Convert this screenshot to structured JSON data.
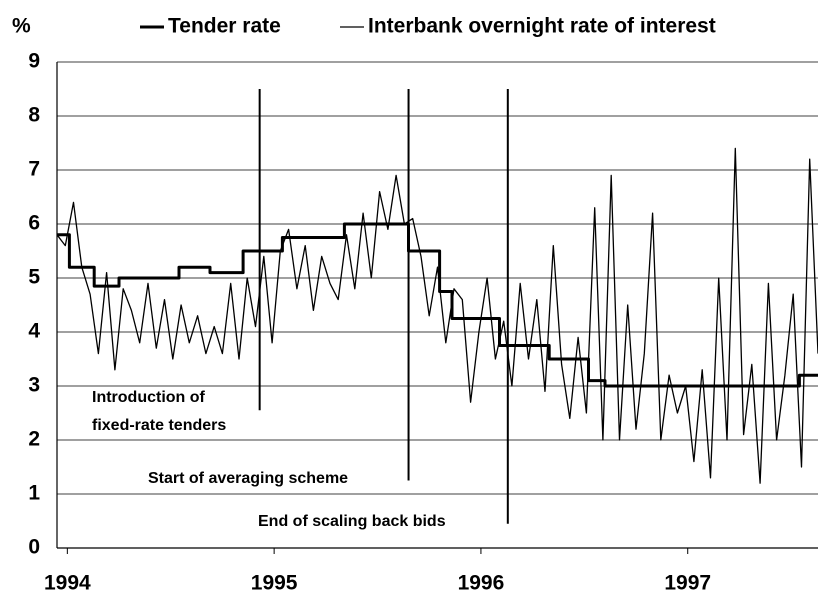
{
  "chart_data": {
    "type": "line",
    "y_label": "%",
    "xlim": [
      1993.95,
      1997.63
    ],
    "ylim": [
      0,
      9
    ],
    "yticks": [
      0,
      1,
      2,
      3,
      4,
      5,
      6,
      7,
      8,
      9
    ],
    "xticks": [
      1994,
      1995,
      1996,
      1997
    ],
    "grid": true,
    "legend": "top",
    "series": [
      {
        "name": "Tender rate",
        "color": "#000000",
        "width": 3,
        "x": [
          1993.95,
          1994.01,
          1994.01,
          1994.13,
          1994.13,
          1994.25,
          1994.25,
          1994.54,
          1994.54,
          1994.69,
          1994.69,
          1994.85,
          1994.85,
          1995.04,
          1995.04,
          1995.34,
          1995.34,
          1995.65,
          1995.65,
          1995.8,
          1995.8,
          1995.86,
          1995.86,
          1996.09,
          1996.09,
          1996.33,
          1996.33,
          1996.52,
          1996.52,
          1996.6,
          1996.6,
          1997.54,
          1997.54,
          1997.63
        ],
        "values": [
          5.8,
          5.8,
          5.2,
          5.2,
          4.85,
          4.85,
          5.0,
          5.0,
          5.2,
          5.2,
          5.1,
          5.1,
          5.5,
          5.5,
          5.75,
          5.75,
          6.0,
          6.0,
          5.5,
          5.5,
          4.75,
          4.75,
          4.25,
          4.25,
          3.75,
          3.75,
          3.5,
          3.5,
          3.1,
          3.1,
          3.0,
          3.0,
          3.2,
          3.2
        ]
      },
      {
        "name": "Interbank overnight rate of interest",
        "color": "#000000",
        "width": 1.3,
        "x": [
          1993.95,
          1993.99,
          1994.03,
          1994.07,
          1994.11,
          1994.15,
          1994.19,
          1994.23,
          1994.27,
          1994.31,
          1994.35,
          1994.39,
          1994.43,
          1994.47,
          1994.51,
          1994.55,
          1994.59,
          1994.63,
          1994.67,
          1994.71,
          1994.75,
          1994.79,
          1994.83,
          1994.87,
          1994.91,
          1994.95,
          1994.99,
          1995.03,
          1995.07,
          1995.11,
          1995.15,
          1995.19,
          1995.23,
          1995.27,
          1995.31,
          1995.35,
          1995.39,
          1995.43,
          1995.47,
          1995.51,
          1995.55,
          1995.59,
          1995.63,
          1995.67,
          1995.71,
          1995.75,
          1995.79,
          1995.83,
          1995.87,
          1995.91,
          1995.95,
          1995.99,
          1996.03,
          1996.07,
          1996.11,
          1996.15,
          1996.19,
          1996.23,
          1996.27,
          1996.31,
          1996.35,
          1996.39,
          1996.43,
          1996.47,
          1996.51,
          1996.55,
          1996.59,
          1996.63,
          1996.67,
          1996.71,
          1996.75,
          1996.79,
          1996.83,
          1996.87,
          1996.91,
          1996.95,
          1996.99,
          1997.03,
          1997.07,
          1997.11,
          1997.15,
          1997.19,
          1997.23,
          1997.27,
          1997.31,
          1997.35,
          1997.39,
          1997.43,
          1997.47,
          1997.51,
          1997.55,
          1997.59,
          1997.63
        ],
        "values": [
          5.8,
          5.6,
          6.4,
          5.2,
          4.7,
          3.6,
          5.1,
          3.3,
          4.8,
          4.4,
          3.8,
          4.9,
          3.7,
          4.6,
          3.5,
          4.5,
          3.8,
          4.3,
          3.6,
          4.1,
          3.6,
          4.9,
          3.5,
          5.0,
          4.1,
          5.4,
          3.8,
          5.5,
          5.9,
          4.8,
          5.6,
          4.4,
          5.4,
          4.9,
          4.6,
          5.8,
          4.8,
          6.2,
          5.0,
          6.6,
          5.9,
          6.9,
          6.0,
          6.1,
          5.4,
          4.3,
          5.2,
          3.8,
          4.8,
          4.6,
          2.7,
          4.0,
          5.0,
          3.5,
          4.2,
          3.0,
          4.9,
          3.5,
          4.6,
          2.9,
          5.6,
          3.4,
          2.4,
          3.9,
          2.5,
          6.3,
          2.0,
          6.9,
          2.0,
          4.5,
          2.2,
          3.6,
          6.2,
          2.0,
          3.2,
          2.5,
          3.0,
          1.6,
          3.3,
          1.3,
          5.0,
          2.0,
          7.4,
          2.1,
          3.4,
          1.2,
          4.9,
          2.0,
          3.2,
          4.7,
          1.5,
          7.2,
          3.6
        ]
      }
    ],
    "annotations": [
      {
        "lines": [
          "Introduction of",
          "fixed-rate tenders"
        ],
        "x": 1994.93
      },
      {
        "lines": [
          "Start of averaging scheme"
        ],
        "x": 1995.65
      },
      {
        "lines": [
          "End of scaling back bids"
        ],
        "x": 1996.13
      }
    ]
  }
}
